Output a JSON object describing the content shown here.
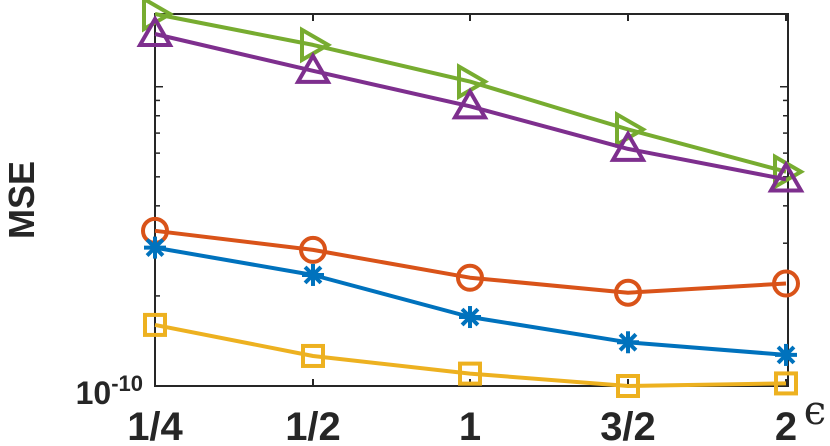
{
  "chart_data": {
    "type": "line",
    "title": "",
    "xlabel": "ϵ",
    "ylabel": "MSE",
    "categories": [
      "1/4",
      "1/2",
      "1",
      "3/2",
      "2"
    ],
    "yscale": "log",
    "ylim": [
      1e-10,
      1.75e-09
    ],
    "yticks": [
      1e-10
    ],
    "ytick_labels": [
      {
        "base": "10",
        "exp": "-10"
      }
    ],
    "grid": false,
    "legend": "none",
    "series": [
      {
        "marker": "triangle-right",
        "color": "#77AC30",
        "values": [
          1.75e-09,
          1.38e-09,
          1.04e-09,
          7.2e-10,
          5.2e-10
        ]
      },
      {
        "marker": "triangle-up",
        "color": "#7E2F8E",
        "values": [
          1.5e-09,
          1.13e-09,
          8.6e-10,
          6.2e-10,
          4.9e-10
        ]
      },
      {
        "marker": "circle",
        "color": "#D95319",
        "values": [
          3.3e-10,
          2.85e-10,
          2.3e-10,
          2.05e-10,
          2.2e-10
        ]
      },
      {
        "marker": "asterisk",
        "color": "#0072BD",
        "values": [
          2.9e-10,
          2.35e-10,
          1.7e-10,
          1.4e-10,
          1.27e-10
        ]
      },
      {
        "marker": "square",
        "color": "#EDB120",
        "values": [
          1.6e-10,
          1.26e-10,
          1.1e-10,
          1e-10,
          1.02e-10
        ]
      }
    ]
  }
}
